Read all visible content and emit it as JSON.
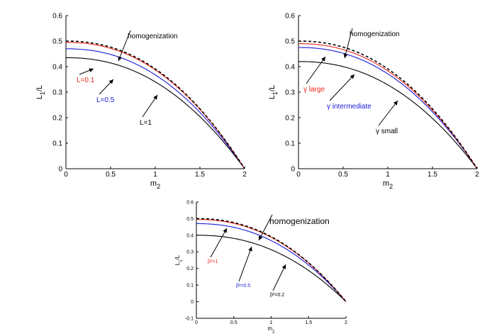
{
  "colors": {
    "black": "#000000",
    "red": "#e8261c",
    "blue": "#1a1adb"
  },
  "chart_data": [
    {
      "type": "line",
      "title": "",
      "xlabel": "m",
      "xlabel_sub": "2",
      "ylabel": "L",
      "ylabel_sub": "1",
      "ylabel_suffix": "/L",
      "xlim": [
        0,
        2
      ],
      "ylim": [
        0,
        0.6
      ],
      "xticks": [
        "0",
        "0.5",
        "1",
        "1.5",
        "2"
      ],
      "xtick_values": [
        0,
        0.5,
        1,
        1.5,
        2
      ],
      "yticks": [
        "0",
        "0.1",
        "0.2",
        "0.3",
        "0.4",
        "0.5",
        "0.6"
      ],
      "ytick_values": [
        0,
        0.1,
        0.2,
        0.3,
        0.4,
        0.5,
        0.6
      ],
      "grid": false,
      "series": [
        {
          "name": "homogenization",
          "y0": 0.5,
          "style": "dashed",
          "color": "black"
        },
        {
          "name": "L=0.1",
          "y0": 0.495,
          "style": "solid",
          "color": "red"
        },
        {
          "name": "L=0.5",
          "y0": 0.47,
          "style": "solid",
          "color": "blue"
        },
        {
          "name": "L=1",
          "y0": 0.435,
          "style": "solid",
          "color": "black"
        }
      ],
      "annotations": [
        {
          "text": "homogenization",
          "color": "black"
        },
        {
          "text": "L=0.1",
          "color": "red"
        },
        {
          "text": "L=0.5",
          "color": "blue"
        },
        {
          "text": "L=1",
          "color": "black"
        }
      ]
    },
    {
      "type": "line",
      "title": "",
      "xlabel": "m",
      "xlabel_sub": "2",
      "ylabel": "L",
      "ylabel_sub": "1",
      "ylabel_suffix": "/L",
      "xlim": [
        0,
        2
      ],
      "ylim": [
        0,
        0.6
      ],
      "xticks": [
        "0",
        "0.5",
        "1",
        "1.5",
        "2"
      ],
      "xtick_values": [
        0,
        0.5,
        1,
        1.5,
        2
      ],
      "yticks": [
        "0",
        "0.1",
        "0.2",
        "0.3",
        "0.4",
        "0.5",
        "0.6"
      ],
      "ytick_values": [
        0,
        0.1,
        0.2,
        0.3,
        0.4,
        0.5,
        0.6
      ],
      "grid": false,
      "series": [
        {
          "name": "homogenization",
          "y0": 0.5,
          "style": "dashed",
          "color": "black"
        },
        {
          "name": "γ large",
          "y0": 0.49,
          "style": "solid",
          "color": "red"
        },
        {
          "name": "γ intermediate",
          "y0": 0.475,
          "style": "solid",
          "color": "blue"
        },
        {
          "name": "γ small",
          "y0": 0.42,
          "style": "solid",
          "color": "black"
        }
      ],
      "annotations": [
        {
          "text": "homogenization",
          "color": "black"
        },
        {
          "text": "γ large",
          "color": "red"
        },
        {
          "text": "γ intermediate",
          "color": "blue"
        },
        {
          "text": "γ small",
          "color": "black"
        }
      ]
    },
    {
      "type": "line",
      "title": "",
      "xlabel": "m",
      "xlabel_sub": "2",
      "ylabel": "L",
      "ylabel_sub": "1",
      "ylabel_suffix": "/L",
      "xlim": [
        0,
        2
      ],
      "ylim": [
        -0.1,
        0.6
      ],
      "xticks": [
        "0",
        "0.5",
        "1",
        "1.5",
        "2"
      ],
      "xtick_values": [
        0,
        0.5,
        1,
        1.5,
        2
      ],
      "yticks": [
        "-0.1",
        "0",
        "0.1",
        "0.2",
        "0.3",
        "0.4",
        "0.5",
        "0.6"
      ],
      "ytick_values": [
        -0.1,
        0,
        0.1,
        0.2,
        0.3,
        0.4,
        0.5,
        0.6
      ],
      "grid": false,
      "series": [
        {
          "name": "homogenization",
          "y0": 0.5,
          "style": "dashed",
          "color": "black"
        },
        {
          "name": "β²=1",
          "y0": 0.495,
          "style": "solid",
          "color": "red"
        },
        {
          "name": "β²=0.5",
          "y0": 0.47,
          "style": "solid",
          "color": "blue"
        },
        {
          "name": "β²=0.2",
          "y0": 0.4,
          "style": "solid",
          "color": "black"
        }
      ],
      "annotations": [
        {
          "text": "homogenization",
          "color": "black"
        },
        {
          "text": "β²=1",
          "color": "red"
        },
        {
          "text": "β²=0.5",
          "color": "blue"
        },
        {
          "text": "β²=0.2",
          "color": "black"
        }
      ]
    }
  ]
}
